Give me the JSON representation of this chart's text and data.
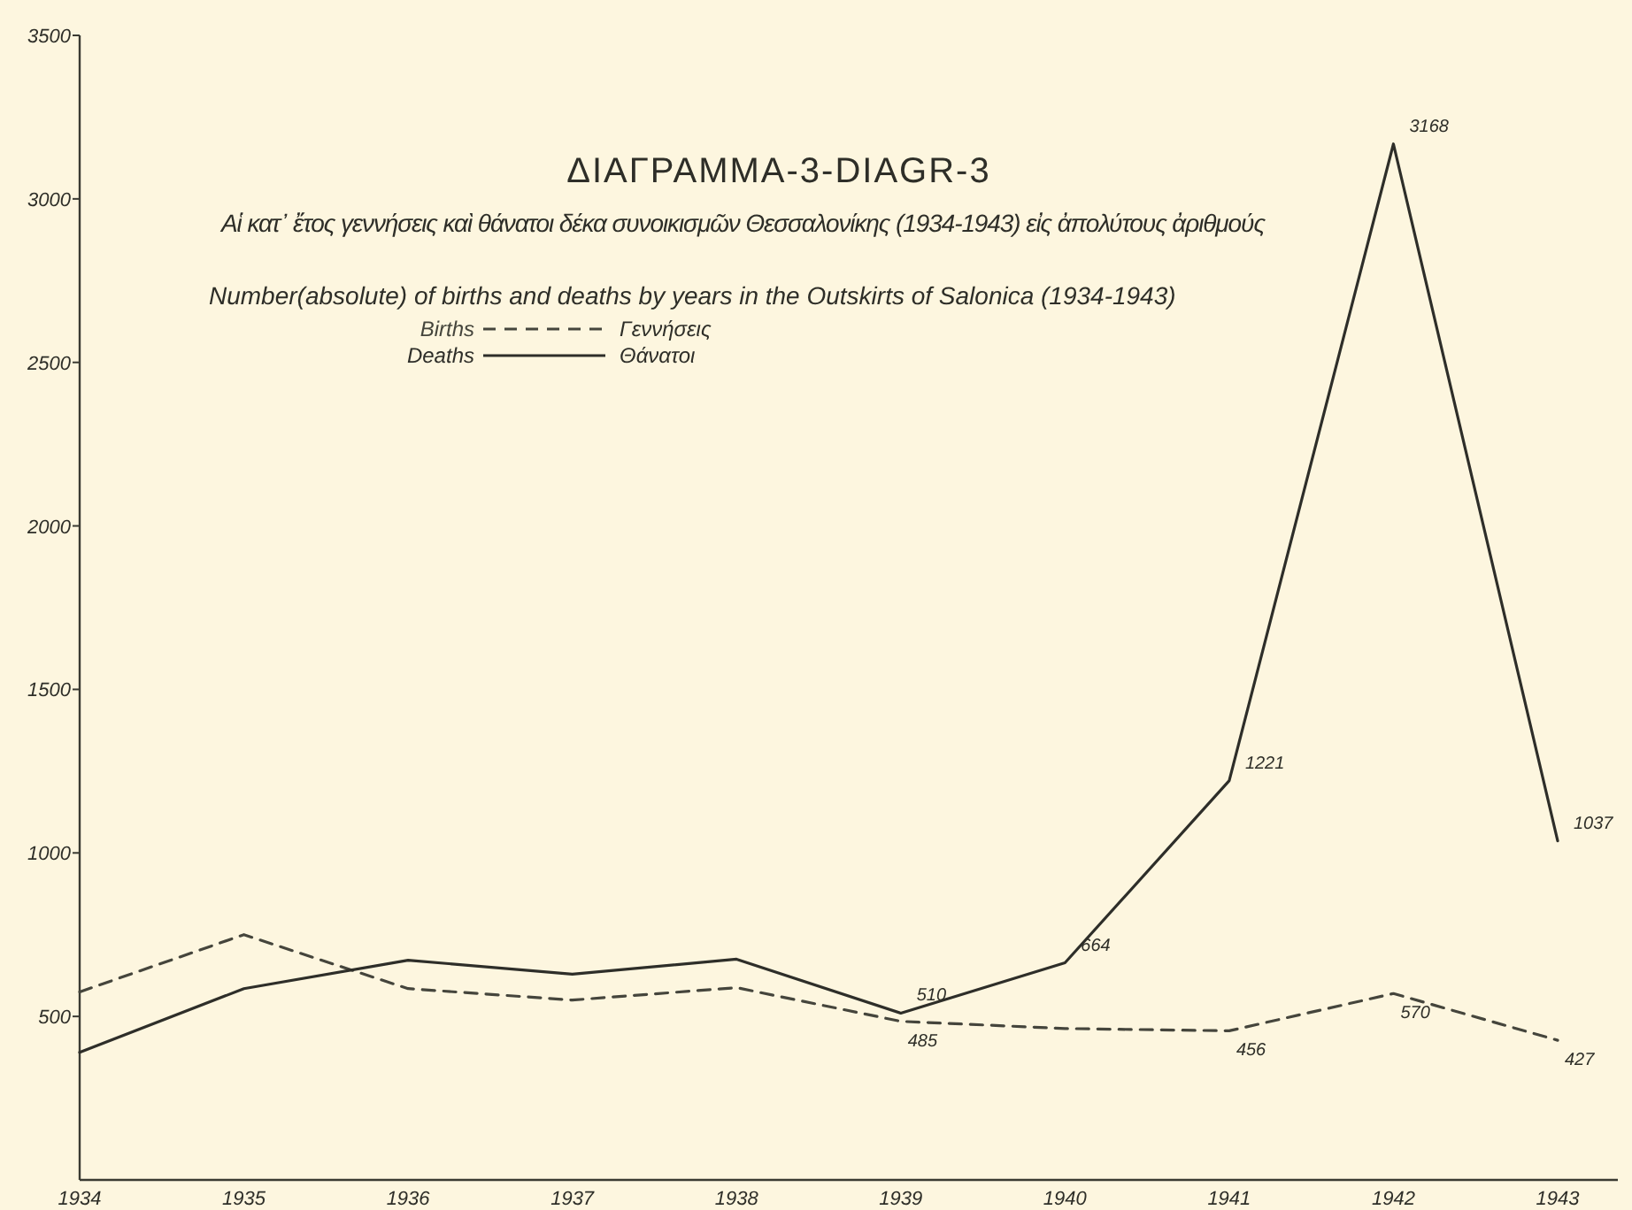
{
  "chart_data": {
    "type": "line",
    "title": "ΔΙΑΓΡΑΜΜΑ-3-DIAGR-3",
    "subtitle": "Αἱ κατ᾽ ἔτος γεννήσεις καὶ θάνατοι δέκα συνοικισμῶν Θεσσαλονίκης (1934-1943) εἰς ἀπολύτους ἀριθμούς",
    "annotations": [
      "Number(absolute) of births and deaths by years in the Outskirts of Salonica (1934-1943)",
      "Γεννήσεις",
      "Θάνατοι"
    ],
    "categories": [
      "1934",
      "1935",
      "1936",
      "1937",
      "1938",
      "1939",
      "1940",
      "1941",
      "1942",
      "1943"
    ],
    "series": [
      {
        "name": "Births",
        "color": "#45453c",
        "line_style": "dashed",
        "values": [
          575,
          750,
          585,
          550,
          588,
          485,
          463,
          456,
          570,
          427
        ],
        "value_labels": [
          null,
          null,
          null,
          null,
          null,
          "485",
          null,
          "456",
          "570",
          "427"
        ]
      },
      {
        "name": "Deaths",
        "color": "#2e2e29",
        "line_style": "solid",
        "values": [
          390,
          585,
          672,
          629,
          675,
          510,
          664,
          1221,
          3168,
          1037
        ],
        "value_labels": [
          null,
          null,
          null,
          null,
          null,
          "510",
          "664",
          "1221",
          "3168",
          "1037"
        ]
      }
    ],
    "ylim": [
      0,
      3500
    ],
    "yticks": [
      500,
      1000,
      1500,
      2000,
      2500,
      3000,
      3500
    ],
    "legend": "top left",
    "grid": false,
    "marker": "none"
  }
}
